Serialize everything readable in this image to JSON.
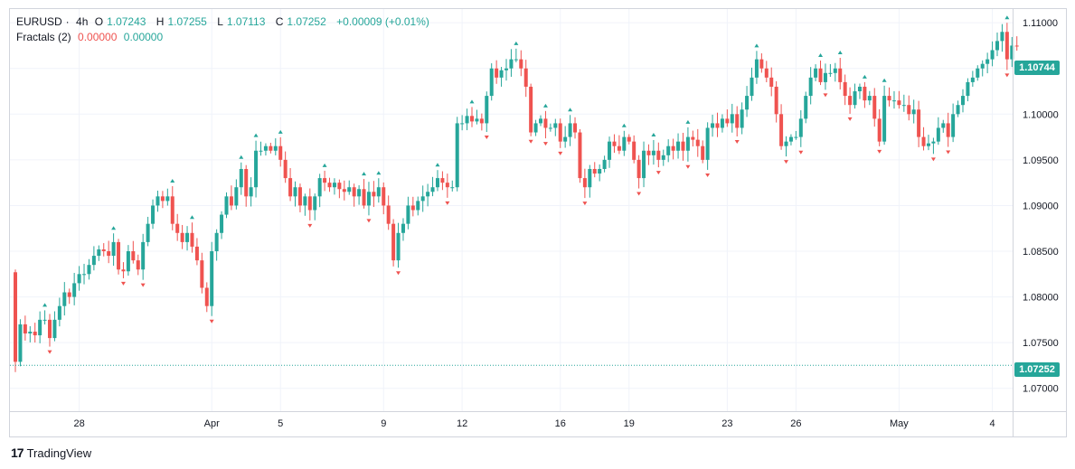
{
  "legend": {
    "symbol": "EURUSD",
    "interval": "4h",
    "open_label": "O",
    "open": "1.07243",
    "high_label": "H",
    "high": "1.07255",
    "low_label": "L",
    "low": "1.07113",
    "close_label": "C",
    "close": "1.07252",
    "change": "+0.00009 (+0.01%)",
    "indicator_name": "Fractals (2)",
    "indicator_up": "0.00000",
    "indicator_down": "0.00000"
  },
  "brand": {
    "name": "TradingView"
  },
  "price_tags": {
    "last": "1.10744",
    "reference": "1.07252"
  },
  "colors": {
    "up": "#26a69a",
    "down": "#ef5350",
    "grid": "#f0f3fa",
    "border": "#d1d4dc",
    "text": "#131722"
  },
  "chart_data": {
    "type": "candlestick",
    "symbol": "EURUSD",
    "interval": "4h",
    "ylim": [
      1.0675,
      1.1115
    ],
    "y_ticks": [
      "1.11000",
      "1.10500",
      "1.10000",
      "1.09500",
      "1.09000",
      "1.08500",
      "1.08000",
      "1.07500",
      "1.07000"
    ],
    "x_ticks": [
      "28",
      "Apr",
      "5",
      "9",
      "12",
      "16",
      "19",
      "23",
      "26",
      "May",
      "4"
    ],
    "x_tick_index": [
      13,
      40,
      54,
      75,
      91,
      111,
      125,
      145,
      159,
      180,
      199
    ],
    "reference_line": 1.07252,
    "closes": [
      1.0729,
      1.077,
      1.076,
      1.0762,
      1.0758,
      1.0775,
      1.0775,
      1.0755,
      1.0775,
      1.079,
      1.0805,
      1.08,
      1.0815,
      1.0825,
      1.0825,
      1.0835,
      1.0845,
      1.0852,
      1.085,
      1.0845,
      1.086,
      1.083,
      1.0828,
      1.085,
      1.084,
      1.083,
      1.086,
      1.088,
      1.09,
      1.091,
      1.0905,
      1.091,
      1.088,
      1.087,
      1.086,
      1.087,
      1.0855,
      1.084,
      1.081,
      1.079,
      1.085,
      1.087,
      1.089,
      1.091,
      1.09,
      1.092,
      1.094,
      1.091,
      1.092,
      1.096,
      1.096,
      1.0965,
      1.096,
      1.0965,
      1.095,
      1.093,
      1.091,
      1.092,
      1.09,
      1.091,
      1.0895,
      1.091,
      1.093,
      1.0925,
      1.092,
      1.0925,
      1.0918,
      1.0915,
      1.092,
      1.091,
      1.0918,
      1.09,
      1.0915,
      1.091,
      1.092,
      1.09,
      1.088,
      1.084,
      1.087,
      1.088,
      1.09,
      1.0895,
      1.0905,
      1.091,
      1.0915,
      1.092,
      1.093,
      1.0925,
      1.092,
      1.092,
      1.099,
      1.099,
      1.0998,
      1.0992,
      1.0995,
      1.099,
      1.102,
      1.105,
      1.104,
      1.1048,
      1.105,
      1.106,
      1.106,
      1.105,
      1.103,
      1.098,
      1.099,
      1.0995,
      1.0985,
      1.0985,
      1.099,
      1.097,
      1.0975,
      1.099,
      1.098,
      1.093,
      1.092,
      1.094,
      1.0935,
      1.094,
      1.095,
      1.097,
      1.0965,
      1.096,
      1.0975,
      1.097,
      1.095,
      1.093,
      1.096,
      1.0955,
      1.096,
      1.095,
      1.0955,
      1.0965,
      1.096,
      1.097,
      1.096,
      1.0975,
      1.0972,
      1.0965,
      1.095,
      1.0985,
      1.099,
      1.0985,
      1.0995,
      1.099,
      1.1,
      1.0985,
      1.1005,
      1.102,
      1.104,
      1.106,
      1.105,
      1.104,
      1.103,
      1.1,
      1.0965,
      1.097,
      1.0975,
      1.0975,
      1.0995,
      1.102,
      1.104,
      1.105,
      1.1035,
      1.1045,
      1.1045,
      1.105,
      1.1035,
      1.102,
      1.101,
      1.1025,
      1.103,
      1.1015,
      1.102,
      1.0995,
      1.097,
      1.102,
      1.1015,
      1.1015,
      1.101,
      1.101,
      1.1,
      1.1005,
      1.0975,
      1.0965,
      1.0968,
      1.097,
      1.0985,
      1.099,
      1.0975,
      1.1,
      1.101,
      1.102,
      1.1035,
      1.104,
      1.105,
      1.1055,
      1.106,
      1.107,
      1.108,
      1.109,
      1.106,
      1.1075,
      1.1074
    ]
  }
}
